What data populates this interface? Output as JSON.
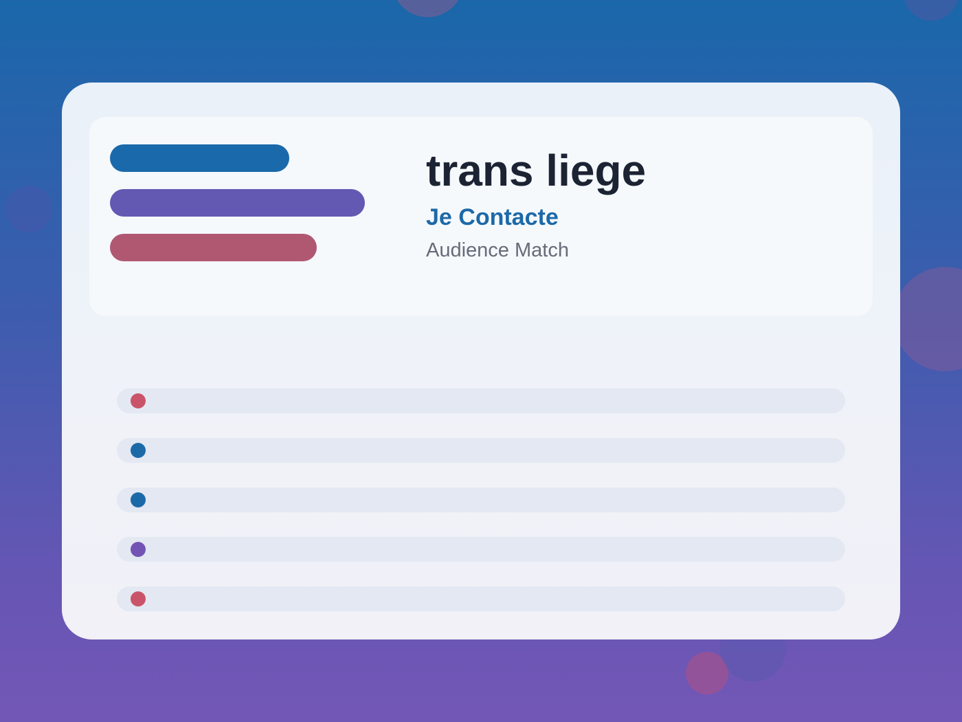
{
  "header": {
    "title": "trans liege",
    "subtitle": "Je Contacte",
    "tagline": "Audience Match"
  },
  "colors": {
    "bar_blue": "#1a69aa",
    "bar_purple": "#6359b2",
    "bar_pink": "#b05872",
    "dot_red": "#c95469",
    "dot_blue": "#1c69a8",
    "dot_purple": "#7354b4"
  },
  "rows": [
    {
      "dot_color": "#c95469"
    },
    {
      "dot_color": "#1c69a8"
    },
    {
      "dot_color": "#1c69a8"
    },
    {
      "dot_color": "#7354b4"
    },
    {
      "dot_color": "#c95469"
    }
  ]
}
